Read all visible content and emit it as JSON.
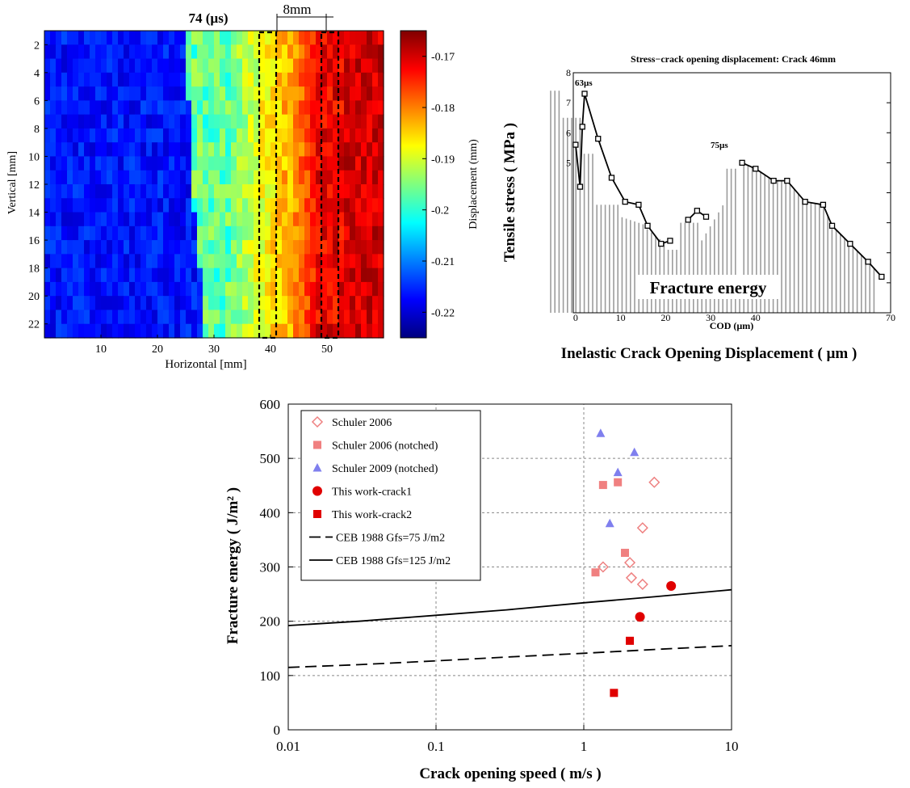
{
  "chart_data": [
    {
      "type": "heatmap",
      "title": "74 (µs)",
      "xlabel": "Horizontal [mm]",
      "ylabel": "Vertical [mm]",
      "xlim": [
        0,
        60
      ],
      "ylim": [
        23,
        1
      ],
      "x_ticks": [
        "10",
        "20",
        "30",
        "40",
        "50"
      ],
      "y_ticks": [
        "2",
        "4",
        "6",
        "8",
        "10",
        "12",
        "14",
        "16",
        "18",
        "20",
        "22"
      ],
      "colorbar_label": "Displacement (mm)",
      "colorbar_range": [
        -0.225,
        -0.165
      ],
      "colorbar_ticks": [
        "-0.17",
        "-0.18",
        "-0.19",
        "-0.2",
        "-0.21",
        "-0.22"
      ],
      "annotation": "8mm",
      "dashed_boxes_x": [
        [
          38,
          41
        ],
        [
          49,
          52
        ]
      ],
      "colorbar_colors": [
        "#00007f",
        "#0000ff",
        "#007fff",
        "#00ffff",
        "#7fff7f",
        "#ffff00",
        "#ff7f00",
        "#ff0000",
        "#7f0000"
      ]
    },
    {
      "type": "area",
      "title": "Stress−crack opening displacement: Crack 46mm",
      "xlabel": "COD (µm)",
      "ylabel": "Tensile stress ( MPa )",
      "outer_xlabel": "Inelastic Crack Opening Displacement ( µm )",
      "fill_label": "Fracture energy",
      "xlim": [
        -5,
        70
      ],
      "ylim": [
        0,
        8
      ],
      "x_ticks": [
        "0",
        "10",
        "20",
        "30",
        "40",
        "70"
      ],
      "y_ticks": [
        "8",
        "7",
        "6",
        "5"
      ],
      "annotations": [
        "63µs",
        "75µs"
      ],
      "series": [
        {
          "x": [
            0,
            1,
            1.5,
            2,
            5,
            8,
            11,
            14,
            16,
            19,
            21
          ],
          "y": [
            5.6,
            4.2,
            6.2,
            7.3,
            5.8,
            4.5,
            3.7,
            3.6,
            2.9,
            2.3,
            2.4
          ]
        },
        {
          "x": [
            25,
            27,
            29
          ],
          "y": [
            3.1,
            3.4,
            3.2
          ]
        },
        {
          "x": [
            37,
            40,
            44,
            47,
            51,
            55,
            57,
            61,
            65,
            68
          ],
          "y": [
            5.0,
            4.8,
            4.4,
            4.4,
            3.7,
            3.6,
            2.9,
            2.3,
            1.7,
            1.2
          ]
        }
      ]
    },
    {
      "type": "scatter",
      "xlabel": "Crack opening speed ( m/s )",
      "ylabel": "Fracture energy ( J/m² )",
      "x_scale": "log",
      "xlim": [
        0.01,
        10
      ],
      "ylim": [
        0,
        600
      ],
      "x_ticks": [
        "0.01",
        "0.1",
        "1",
        "10"
      ],
      "y_ticks": [
        "0",
        "100",
        "200",
        "300",
        "400",
        "500",
        "600"
      ],
      "grid": true,
      "legend_position": "top-left",
      "series": [
        {
          "name": "Schuler 2006",
          "color": "#ee8080",
          "marker": "diamond-open",
          "x": [
            3.0,
            2.5,
            1.35,
            2.05,
            2.1,
            2.5
          ],
          "y": [
            456,
            372,
            300,
            308,
            280,
            268
          ]
        },
        {
          "name": "Schuler 2006 (notched)",
          "color": "#f08080",
          "marker": "square",
          "x": [
            1.35,
            1.7,
            1.9,
            1.2
          ],
          "y": [
            451,
            456,
            326,
            290
          ]
        },
        {
          "name": "Schuler 2009 (notched)",
          "color": "#7f7fee",
          "marker": "triangle",
          "x": [
            1.3,
            2.2,
            1.7,
            1.5
          ],
          "y": [
            546,
            511,
            474,
            380
          ]
        },
        {
          "name": "This work-crack1",
          "color": "#e00000",
          "marker": "circle",
          "x": [
            3.9,
            2.4
          ],
          "y": [
            265,
            208
          ]
        },
        {
          "name": "This work-crack2",
          "color": "#e00000",
          "marker": "square",
          "x": [
            2.05,
            1.6
          ],
          "y": [
            164,
            68
          ]
        },
        {
          "name": "CEB 1988 Gfs=75 J/m2",
          "color": "#000000",
          "line": "dashed",
          "x": [
            0.01,
            0.03,
            0.1,
            0.3,
            1,
            3,
            10
          ],
          "y": [
            115,
            120,
            127,
            134,
            141,
            148,
            155
          ]
        },
        {
          "name": "CEB 1988 Gfs=125 J/m2",
          "color": "#000000",
          "line": "solid",
          "x": [
            0.01,
            0.03,
            0.1,
            0.3,
            1,
            3,
            10
          ],
          "y": [
            192,
            200,
            211,
            221,
            234,
            245,
            258
          ]
        }
      ]
    }
  ]
}
